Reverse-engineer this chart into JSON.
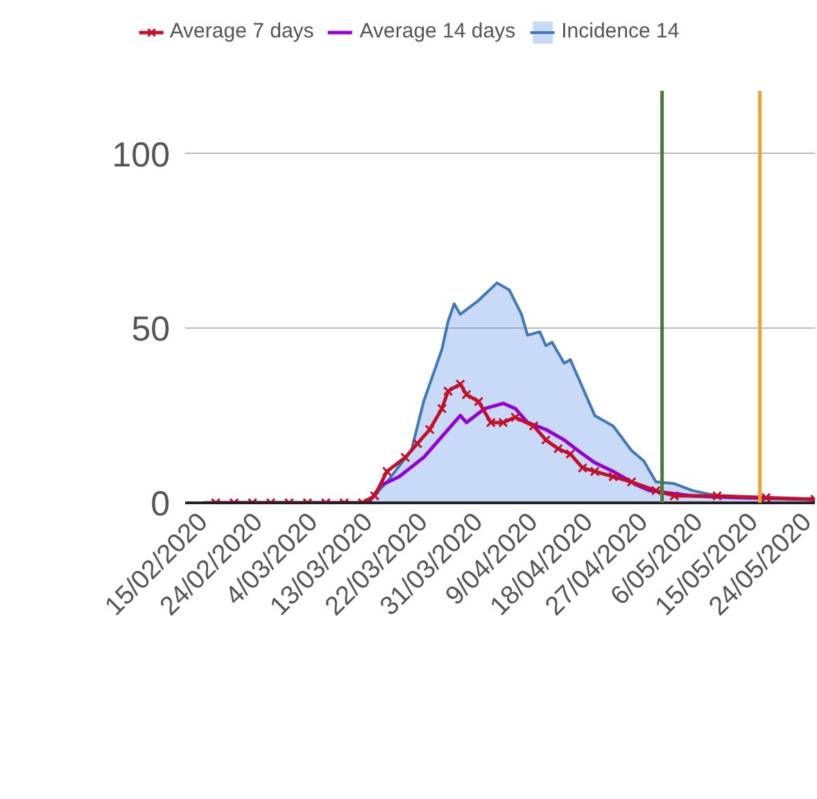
{
  "chart_data": {
    "type": "line",
    "legend": "top",
    "grid": "y",
    "ylim": [
      0,
      118
    ],
    "yticks": [
      0,
      50,
      100
    ],
    "xlim": [
      "2020-02-12",
      "2020-05-25"
    ],
    "xticks": [
      {
        "value": "2020-02-15",
        "label": "15/02/2020"
      },
      {
        "value": "2020-02-24",
        "label": "24/02/2020"
      },
      {
        "value": "2020-03-04",
        "label": "4/03/2020"
      },
      {
        "value": "2020-03-13",
        "label": "13/03/2020"
      },
      {
        "value": "2020-03-22",
        "label": "22/03/2020"
      },
      {
        "value": "2020-03-31",
        "label": "31/03/2020"
      },
      {
        "value": "2020-04-09",
        "label": "9/04/2020"
      },
      {
        "value": "2020-04-18",
        "label": "18/04/2020"
      },
      {
        "value": "2020-04-27",
        "label": "27/04/2020"
      },
      {
        "value": "2020-05-06",
        "label": "6/05/2020"
      },
      {
        "value": "2020-05-15",
        "label": "15/05/2020"
      },
      {
        "value": "2020-05-24",
        "label": "24/05/2020"
      }
    ],
    "series": [
      {
        "name": "Average 7 days",
        "marker": "cross",
        "color": "#c0102a",
        "x": [
          "2020-02-17",
          "2020-02-20",
          "2020-02-23",
          "2020-02-26",
          "2020-02-29",
          "2020-03-03",
          "2020-03-06",
          "2020-03-09",
          "2020-03-12",
          "2020-03-14",
          "2020-03-16",
          "2020-03-19",
          "2020-03-21",
          "2020-03-23",
          "2020-03-25",
          "2020-03-26",
          "2020-03-28",
          "2020-03-29",
          "2020-03-31",
          "2020-04-02",
          "2020-04-04",
          "2020-04-06",
          "2020-04-09",
          "2020-04-11",
          "2020-04-13",
          "2020-04-15",
          "2020-04-17",
          "2020-04-19",
          "2020-04-22",
          "2020-04-25",
          "2020-04-29",
          "2020-05-02",
          "2020-05-09",
          "2020-05-17",
          "2020-05-25"
        ],
        "values": [
          0,
          0,
          0,
          0,
          0,
          0,
          0,
          0,
          0,
          2,
          9,
          13,
          17,
          21,
          27,
          32,
          34,
          31,
          29,
          23,
          23,
          24.5,
          22,
          18,
          15.5,
          14,
          10,
          9,
          7.5,
          6,
          3.5,
          2,
          2,
          1.5,
          1
        ]
      },
      {
        "name": "Average 14 days",
        "color": "#9400d3",
        "x": [
          "2020-02-15",
          "2020-03-13",
          "2020-03-15",
          "2020-03-18",
          "2020-03-22",
          "2020-03-25",
          "2020-03-28",
          "2020-03-29",
          "2020-04-01",
          "2020-04-04",
          "2020-04-06",
          "2020-04-08",
          "2020-04-11",
          "2020-04-14",
          "2020-04-17",
          "2020-04-19",
          "2020-04-22",
          "2020-04-26",
          "2020-04-28",
          "2020-05-05",
          "2020-05-12",
          "2020-05-25"
        ],
        "values": [
          0,
          0,
          5,
          7.5,
          13,
          19,
          25,
          23,
          27,
          28.5,
          27,
          23,
          21,
          18,
          14,
          11.5,
          9,
          5,
          3.5,
          2,
          1.5,
          1
        ]
      },
      {
        "name": "Incidence 14",
        "type": "area",
        "color": "#4a86e8",
        "x": [
          "2020-02-15",
          "2020-03-12",
          "2020-03-13",
          "2020-03-16",
          "2020-03-20",
          "2020-03-22",
          "2020-03-25",
          "2020-03-26",
          "2020-03-27",
          "2020-03-28",
          "2020-03-31",
          "2020-04-03",
          "2020-04-05",
          "2020-04-07",
          "2020-04-08",
          "2020-04-10",
          "2020-04-11",
          "2020-04-12",
          "2020-04-14",
          "2020-04-15",
          "2020-04-17",
          "2020-04-19",
          "2020-04-22",
          "2020-04-25",
          "2020-04-27",
          "2020-04-29",
          "2020-05-02",
          "2020-05-05",
          "2020-05-09",
          "2020-05-17",
          "2020-05-25"
        ],
        "values": [
          0,
          0,
          0.3,
          6,
          15,
          29,
          44,
          52,
          57,
          54,
          58,
          63,
          61,
          54,
          48,
          49,
          45,
          46,
          40,
          41,
          33,
          25,
          22,
          15,
          12,
          6,
          5.5,
          3.5,
          2,
          1.5,
          1
        ]
      }
    ],
    "ref_lines": [
      {
        "axis": "x",
        "value": "2020-04-30",
        "color": "#4a7a3a"
      },
      {
        "axis": "x",
        "value": "2020-05-16",
        "color": "#f0a030"
      }
    ]
  }
}
